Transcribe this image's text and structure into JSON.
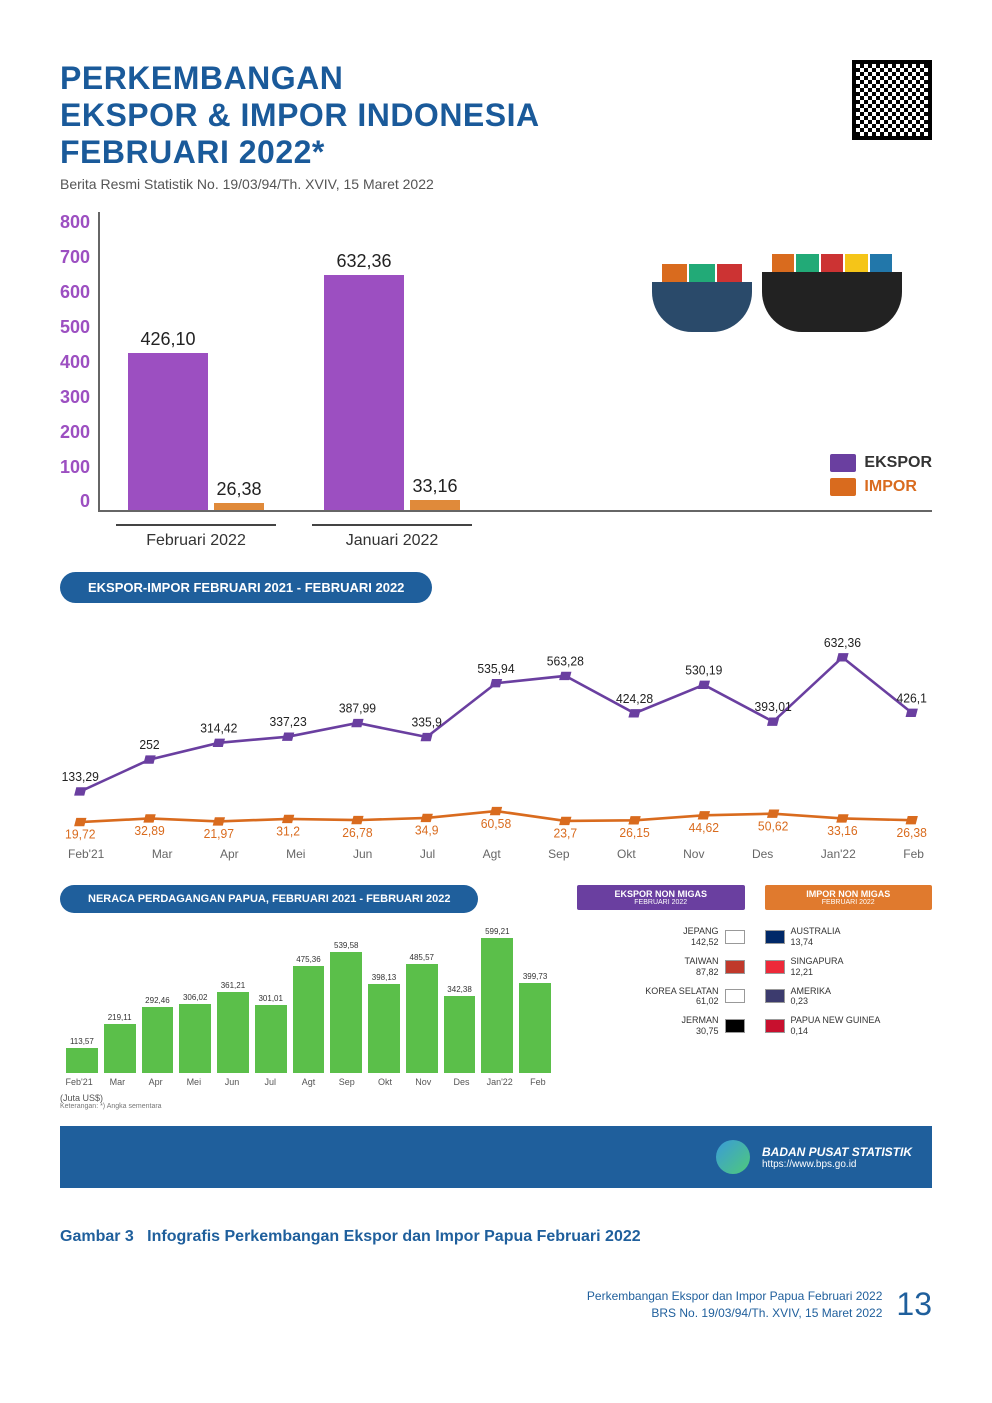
{
  "header": {
    "title_l1": "PERKEMBANGAN",
    "title_l2": "EKSPOR & IMPOR INDONESIA",
    "title_l3": "FEBRUARI 2022*",
    "subtitle": "Berita Resmi Statistik No. 19/03/94/Th. XVIV, 15 Maret 2022"
  },
  "colors": {
    "ekspor": "#9c4fc1",
    "impor": "#e08a3a",
    "line_ekspor": "#6a3fa0",
    "line_impor": "#d96b1e",
    "green": "#5bbf4a",
    "blue": "#1f5f9c"
  },
  "barchart": {
    "ylim_max": 800,
    "yticks": [
      "800",
      "700",
      "600",
      "500",
      "400",
      "300",
      "200",
      "100",
      "0"
    ],
    "groups": [
      {
        "cat": "Januari 2022",
        "ekspor": 632.36,
        "ekspor_label": "632,36",
        "impor": 33.16,
        "impor_label": "33,16"
      },
      {
        "cat": "Februari 2022",
        "ekspor": 426.1,
        "ekspor_label": "426,10",
        "impor": 26.38,
        "impor_label": "26,38"
      }
    ],
    "legend_ekspor": "EKSPOR",
    "legend_impor": "IMPOR"
  },
  "line_section_title": "EKSPOR-IMPOR FEBRUARI 2021 - FEBRUARI 2022",
  "linechart": {
    "months": [
      "Feb'21",
      "Mar",
      "Apr",
      "Mei",
      "Jun",
      "Jul",
      "Agt",
      "Sep",
      "Okt",
      "Nov",
      "Des",
      "Jan'22",
      "Feb"
    ],
    "ekspor": {
      "values": [
        133.29,
        252,
        314.42,
        337.23,
        387.99,
        335.9,
        535.94,
        563.28,
        424.28,
        530.19,
        393.01,
        632.36,
        426.1
      ],
      "labels": [
        "133,29",
        "252",
        "314,42",
        "337,23",
        "387,99",
        "335,9",
        "535,94",
        "563,28",
        "424,28",
        "530,19",
        "393,01",
        "632,36",
        "426,1"
      ]
    },
    "impor": {
      "values": [
        19.72,
        32.89,
        21.97,
        31.2,
        26.78,
        34.9,
        60.58,
        23.7,
        26.15,
        44.62,
        50.62,
        33.16,
        26.38
      ],
      "labels": [
        "19,72",
        "32,89",
        "21,97",
        "31,2",
        "26,78",
        "34,9",
        "60,58",
        "23,7",
        "26,15",
        "44,62",
        "50,62",
        "33,16",
        "26,38"
      ]
    },
    "ymax": 700
  },
  "green_section_title": "NERACA PERDAGANGAN PAPUA, FEBRUARI 2021 - FEBRUARI 2022",
  "greenchart": {
    "months": [
      "Feb'21",
      "Mar",
      "Apr",
      "Mei",
      "Jun",
      "Jul",
      "Agt",
      "Sep",
      "Okt",
      "Nov",
      "Des",
      "Jan'22",
      "Feb"
    ],
    "values": [
      113.57,
      219.11,
      292.46,
      306.02,
      361.21,
      301.01,
      475.36,
      539.58,
      398.13,
      485.57,
      342.38,
      599.21,
      399.73
    ],
    "labels": [
      "113,57",
      "219,11",
      "292,46",
      "306,02",
      "361,21",
      "301,01",
      "475,36",
      "539,58",
      "398,13",
      "485,57",
      "342,38",
      "599,21",
      "399,73"
    ],
    "ymax": 620,
    "unit": "(Juta US$)",
    "note": "Keterangan: *) Angka sementara"
  },
  "trade": {
    "ekspor_head": "EKSPOR NON MIGAS",
    "ekspor_sub": "FEBRUARI 2022",
    "impor_head": "IMPOR NON MIGAS",
    "impor_sub": "FEBRUARI 2022",
    "ekspor_rows": [
      {
        "name": "JEPANG",
        "val": "142,52",
        "flag": "#fff"
      },
      {
        "name": "TAIWAN",
        "val": "87,82",
        "flag": "#c0392b"
      },
      {
        "name": "KOREA SELATAN",
        "val": "61,02",
        "flag": "#fff"
      },
      {
        "name": "JERMAN",
        "val": "30,75",
        "flag": "#000"
      }
    ],
    "impor_rows": [
      {
        "name": "AUSTRALIA",
        "val": "13,74",
        "flag": "#002868"
      },
      {
        "name": "SINGAPURA",
        "val": "12,21",
        "flag": "#ed2939"
      },
      {
        "name": "AMERIKA",
        "val": "0,23",
        "flag": "#3c3b6e"
      },
      {
        "name": "PAPUA NEW GUINEA",
        "val": "0,14",
        "flag": "#c8102e"
      }
    ]
  },
  "band": {
    "org": "BADAN PUSAT STATISTIK",
    "url": "https://www.bps.go.id"
  },
  "caption": {
    "prefix": "Gambar 3",
    "text": "Infografis Perkembangan Ekspor dan Impor Papua Februari 2022"
  },
  "footer": {
    "line1": "Perkembangan Ekspor dan Impor Papua Februari 2022",
    "line2": "BRS No. 19/03/94/Th. XVIV, 15 Maret 2022",
    "page": "13"
  }
}
